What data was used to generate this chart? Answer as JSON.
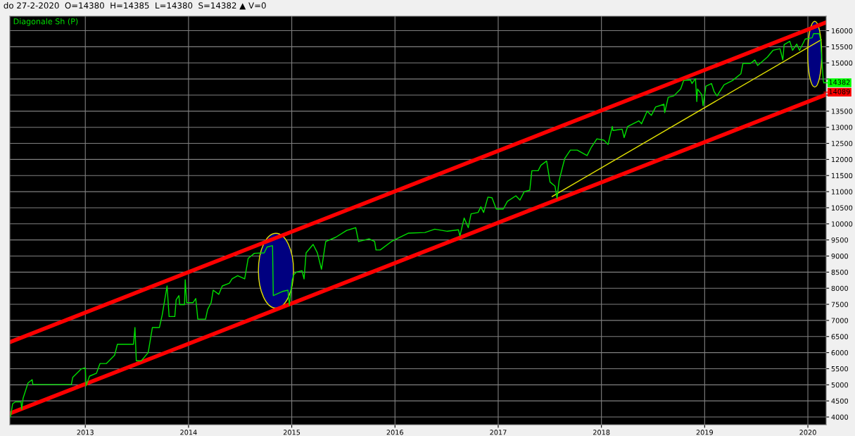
{
  "chart_data": {
    "type": "line",
    "title": "do 27-2-2020  O=14380  H=14385  L=14380  S=14382 ▲ V=0",
    "xlim": [
      2012.269,
      2020.177
    ],
    "xticks": [
      2013,
      2014,
      2015,
      2016,
      2017,
      2018,
      2019,
      2020
    ],
    "ylim": [
      3760,
      16450
    ],
    "yticks": [
      4000,
      4500,
      5000,
      5500,
      6000,
      6500,
      7000,
      7500,
      8000,
      8500,
      9000,
      9500,
      10000,
      10500,
      11000,
      11500,
      12000,
      12500,
      13000,
      13500,
      {
        "value": 14000,
        "label": null
      },
      {
        "value": 14500,
        "label": null
      },
      15000,
      15500,
      16000
    ],
    "grid": true,
    "legend": "top left",
    "series": [
      {
        "name": "Diagonale Sh (P)",
        "color": "#00e000",
        "x": [
          2012.276,
          2012.296,
          2012.323,
          2012.377,
          2012.384,
          2012.397,
          2012.445,
          2012.485,
          2012.492,
          2012.865,
          2012.878,
          2012.959,
          2013.0,
          2013.007,
          2013.041,
          2013.108,
          2013.142,
          2013.203,
          2013.284,
          2013.311,
          2013.467,
          2013.481,
          2013.494,
          2013.542,
          2013.609,
          2013.65,
          2013.718,
          2013.745,
          2013.792,
          2013.812,
          2013.867,
          2013.88,
          2013.907,
          2013.914,
          2013.961,
          2013.968,
          2013.982,
          2014.043,
          2014.07,
          2014.09,
          2014.165,
          2014.185,
          2014.219,
          2014.239,
          2014.293,
          2014.327,
          2014.395,
          2014.422,
          2014.476,
          2014.544,
          2014.578,
          2014.638,
          2014.733,
          2014.76,
          2014.808,
          2014.814,
          2014.821,
          2014.909,
          2014.963,
          2014.977,
          2015.004,
          2015.018,
          2015.045,
          2015.099,
          2015.119,
          2015.139,
          2015.207,
          2015.248,
          2015.288,
          2015.329,
          2015.424,
          2015.532,
          2015.62,
          2015.647,
          2015.749,
          2015.803,
          2015.816,
          2015.857,
          2015.965,
          2016.047,
          2016.128,
          2016.29,
          2016.385,
          2016.507,
          2016.615,
          2016.629,
          2016.67,
          2016.71,
          2016.737,
          2016.805,
          2016.832,
          2016.859,
          2016.9,
          2016.94,
          2016.981,
          2017.049,
          2017.089,
          2017.171,
          2017.211,
          2017.252,
          2017.306,
          2017.326,
          2017.387,
          2017.414,
          2017.469,
          2017.502,
          2017.55,
          2017.57,
          2017.59,
          2017.645,
          2017.699,
          2017.766,
          2017.861,
          2017.902,
          2017.956,
          2018.024,
          2018.064,
          2018.105,
          2018.112,
          2018.2,
          2018.22,
          2018.254,
          2018.362,
          2018.389,
          2018.443,
          2018.484,
          2018.525,
          2018.606,
          2018.613,
          2018.647,
          2018.701,
          2018.768,
          2018.796,
          2018.863,
          2018.877,
          2018.911,
          2018.924,
          2018.931,
          2018.972,
          2018.985,
          2019.012,
          2019.066,
          2019.093,
          2019.12,
          2019.188,
          2019.269,
          2019.351,
          2019.371,
          2019.445,
          2019.486,
          2019.513,
          2019.608,
          2019.662,
          2019.73,
          2019.757,
          2019.77,
          2019.825,
          2019.852,
          2019.892,
          2019.919,
          2019.974,
          2020.041,
          2020.055,
          2020.109,
          2020.122,
          2020.149,
          2020.156
        ],
        "values": [
          4020,
          4410,
          4470,
          4470,
          4240,
          4580,
          5055,
          5160,
          5010,
          5010,
          5230,
          5490,
          5530,
          4970,
          5270,
          5360,
          5660,
          5660,
          5920,
          6260,
          6260,
          6780,
          5745,
          5745,
          6000,
          6780,
          6780,
          7170,
          8070,
          7120,
          7120,
          7640,
          7770,
          7490,
          7490,
          8265,
          7550,
          7550,
          7680,
          7040,
          7040,
          7340,
          7550,
          7940,
          7810,
          8070,
          8155,
          8290,
          8390,
          8290,
          8930,
          9085,
          9100,
          9280,
          9320,
          9320,
          7770,
          7900,
          7940,
          7470,
          8245,
          8415,
          8500,
          8545,
          8290,
          9100,
          9360,
          9100,
          8590,
          9450,
          9580,
          9795,
          9880,
          9450,
          9535,
          9450,
          9190,
          9190,
          9450,
          9580,
          9710,
          9730,
          9835,
          9770,
          9815,
          9620,
          10180,
          9880,
          10310,
          10355,
          10530,
          10355,
          10830,
          10810,
          10460,
          10460,
          10700,
          10870,
          10740,
          11000,
          11045,
          11650,
          11650,
          11820,
          11950,
          11300,
          11170,
          10790,
          11345,
          12035,
          12290,
          12290,
          12120,
          12380,
          12640,
          12600,
          12465,
          13025,
          12900,
          12940,
          12680,
          13025,
          13200,
          13110,
          13500,
          13370,
          13630,
          13715,
          13455,
          13930,
          13975,
          14190,
          14450,
          14470,
          14360,
          14510,
          13800,
          14190,
          14015,
          13670,
          14275,
          14360,
          14100,
          13975,
          14320,
          14450,
          14660,
          14985,
          14985,
          15090,
          14920,
          15180,
          15390,
          15440,
          15090,
          15565,
          15670,
          15390,
          15585,
          15390,
          15740,
          15780,
          15910,
          15910,
          15740,
          14450,
          14382
        ]
      },
      {
        "color": "#ff0000",
        "x": [
          2012.269,
          2020.177
        ],
        "values": [
          6326,
          16257
        ]
      },
      {
        "color": "#ff0000",
        "x": [
          2012.269,
          2020.177
        ],
        "values": [
          4108,
          14016
        ]
      },
      {
        "color": "#e0e000",
        "x": [
          2017.523,
          2020.129
        ],
        "values": [
          10850,
          15718
        ]
      }
    ],
    "annotations": [
      {
        "text": "14382",
        "x": 2020.156,
        "y": 14382
      },
      {
        "text": "14089",
        "x": 2020.156,
        "y": 14089
      }
    ]
  }
}
